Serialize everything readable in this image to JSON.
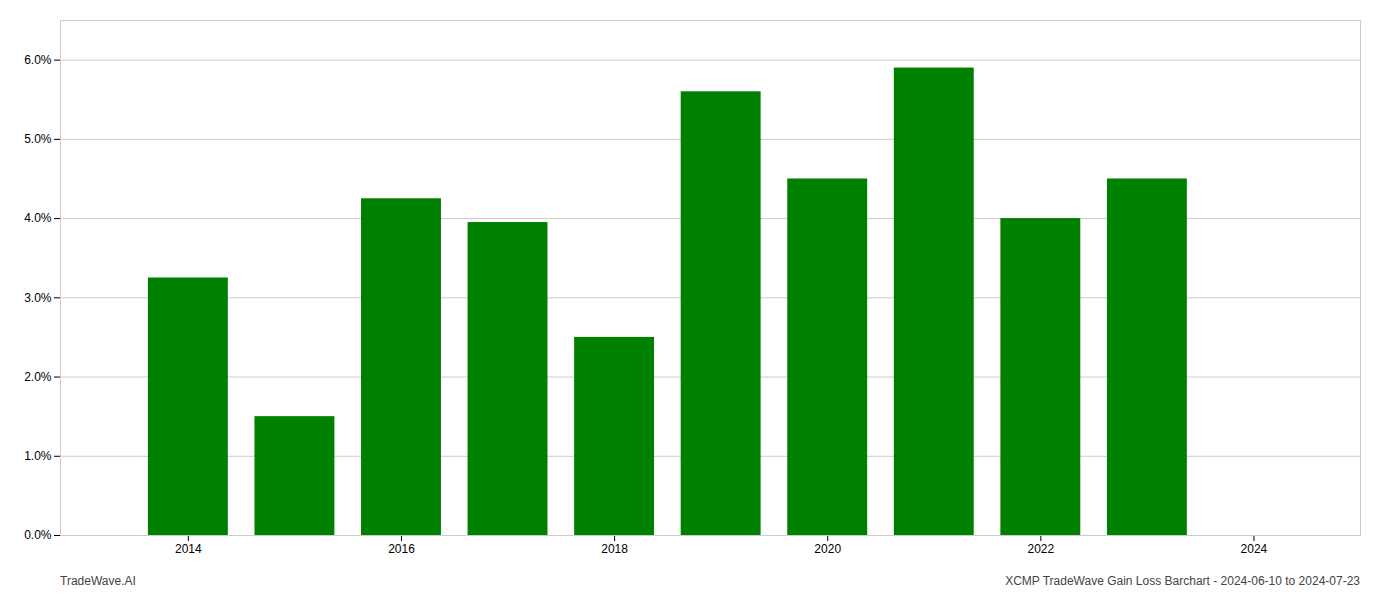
{
  "chart_data": {
    "type": "bar",
    "x": [
      2014,
      2015,
      2016,
      2017,
      2018,
      2019,
      2020,
      2021,
      2022,
      2023
    ],
    "values": [
      0.0325,
      0.015,
      0.0425,
      0.0395,
      0.025,
      0.056,
      0.045,
      0.059,
      0.04,
      0.045
    ],
    "color": "#008000",
    "xlim": [
      2012.8,
      2025.0
    ],
    "xticks": [
      2014,
      2016,
      2018,
      2020,
      2022,
      2024
    ],
    "ylim": [
      0,
      0.065
    ],
    "yticks": [
      {
        "value": 0.0,
        "label": "0.0%"
      },
      {
        "value": 0.01,
        "label": "1.0%"
      },
      {
        "value": 0.02,
        "label": "2.0%"
      },
      {
        "value": 0.03,
        "label": "3.0%"
      },
      {
        "value": 0.04,
        "label": "4.0%"
      },
      {
        "value": 0.05,
        "label": "5.0%"
      },
      {
        "value": 0.06,
        "label": "6.0%"
      }
    ],
    "grid": true,
    "annotations": [
      "TradeWave.AI",
      "XCMP TradeWave Gain Loss Barchart - 2024-06-10 to 2024-07-23"
    ]
  }
}
